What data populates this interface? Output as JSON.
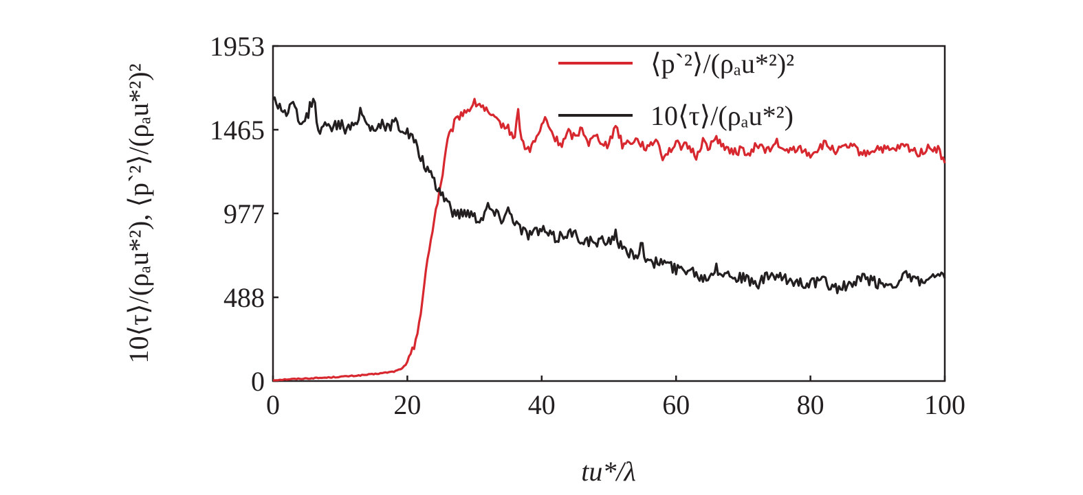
{
  "chart_data": {
    "type": "line",
    "title": "",
    "xlabel": "tu*/λ",
    "ylabel": "10⟨τ⟩/(ρₐu*²), ⟨p`²⟩/(ρₐu*²)²",
    "xlim": [
      0,
      100
    ],
    "ylim": [
      0,
      1953
    ],
    "x_ticks": [
      "0",
      "20",
      "40",
      "60",
      "80",
      "100"
    ],
    "y_ticks": [
      "0",
      "488",
      "977",
      "1465",
      "1953"
    ],
    "x_tick_values": [
      0,
      20,
      40,
      60,
      80,
      100
    ],
    "y_tick_values": [
      0,
      488,
      977,
      1465,
      1953
    ],
    "grid": false,
    "legend_position": "top-right",
    "series": [
      {
        "name": "⟨p`²⟩/(ρₐu*²)²",
        "color": "#d7282f",
        "x": [
          0,
          2,
          5,
          8,
          10,
          12,
          15,
          18,
          19,
          20,
          21,
          22,
          23,
          24,
          25,
          26,
          27,
          28,
          29,
          30,
          31,
          32,
          33,
          34,
          35,
          36,
          36.5,
          37,
          38,
          39,
          40,
          40.5,
          42,
          43,
          44,
          45,
          46,
          47,
          48,
          50,
          51,
          52,
          54,
          56,
          57,
          58,
          60,
          62,
          63,
          64,
          65,
          66,
          68,
          70,
          71,
          72,
          74,
          75,
          76,
          78,
          80,
          82,
          84,
          86,
          88,
          90,
          92,
          94,
          96,
          98,
          99,
          100
        ],
        "y": [
          5,
          10,
          15,
          20,
          25,
          30,
          40,
          55,
          70,
          100,
          200,
          400,
          700,
          950,
          1150,
          1400,
          1500,
          1560,
          1580,
          1620,
          1610,
          1560,
          1520,
          1500,
          1470,
          1420,
          1580,
          1400,
          1340,
          1400,
          1480,
          1530,
          1410,
          1380,
          1450,
          1420,
          1480,
          1390,
          1430,
          1370,
          1500,
          1380,
          1410,
          1350,
          1420,
          1310,
          1380,
          1360,
          1310,
          1400,
          1360,
          1420,
          1330,
          1350,
          1310,
          1380,
          1340,
          1400,
          1330,
          1360,
          1320,
          1380,
          1340,
          1370,
          1320,
          1360,
          1340,
          1370,
          1330,
          1360,
          1350,
          1270
        ]
      },
      {
        "name": "10⟨τ⟩/(ρₐu*²)",
        "color": "#231f20",
        "x": [
          0,
          1,
          2,
          3,
          4,
          5,
          6,
          7,
          8,
          9,
          10,
          11,
          12,
          13,
          14,
          15,
          16,
          17,
          18,
          19,
          20,
          21,
          22,
          23,
          24,
          25,
          26,
          27,
          28,
          29,
          30,
          31,
          32,
          33,
          34,
          35,
          36,
          37,
          38,
          40,
          42,
          44,
          46,
          48,
          50,
          51,
          52,
          54,
          55,
          56,
          58,
          60,
          62,
          64,
          66,
          68,
          70,
          72,
          74,
          76,
          78,
          80,
          82,
          84,
          86,
          88,
          90,
          92,
          94,
          96,
          98,
          100
        ],
        "y": [
          1650,
          1600,
          1560,
          1620,
          1480,
          1540,
          1650,
          1430,
          1520,
          1480,
          1500,
          1460,
          1480,
          1580,
          1500,
          1470,
          1500,
          1470,
          1520,
          1480,
          1450,
          1400,
          1300,
          1230,
          1150,
          1100,
          1050,
          970,
          980,
          990,
          960,
          950,
          1020,
          980,
          950,
          1000,
          940,
          880,
          860,
          880,
          830,
          870,
          830,
          800,
          820,
          860,
          760,
          740,
          780,
          680,
          700,
          650,
          660,
          600,
          650,
          620,
          600,
          560,
          620,
          590,
          580,
          570,
          580,
          540,
          560,
          600,
          570,
          560,
          610,
          580,
          590,
          600
        ]
      }
    ]
  }
}
